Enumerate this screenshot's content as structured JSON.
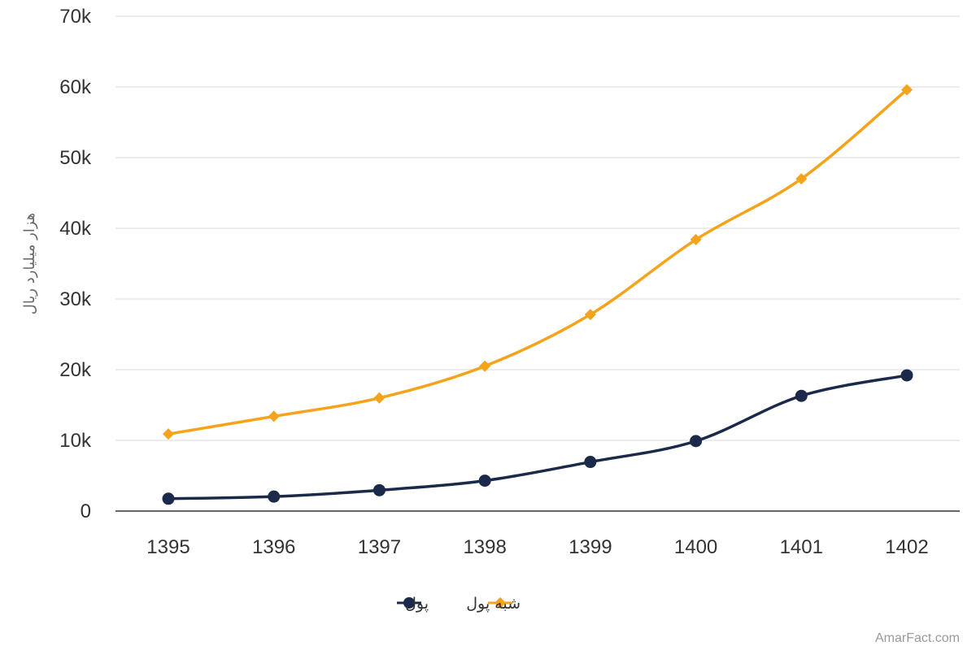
{
  "chart_data": {
    "type": "line",
    "categories": [
      "1395",
      "1396",
      "1397",
      "1398",
      "1399",
      "1400",
      "1401",
      "1402"
    ],
    "series": [
      {
        "name": "پول",
        "color": "#1b2a4a",
        "marker": "circle",
        "values": [
          1750,
          2050,
          2950,
          4300,
          6950,
          9900,
          16300,
          19200
        ]
      },
      {
        "name": "شبه پول",
        "color": "#f5a31a",
        "marker": "diamond",
        "values": [
          10900,
          13400,
          16000,
          20500,
          27800,
          38400,
          47000,
          59600
        ]
      }
    ],
    "ylim": [
      0,
      70000
    ],
    "yticks": [
      0,
      10000,
      20000,
      30000,
      40000,
      50000,
      60000,
      70000
    ],
    "ytick_labels": [
      "0",
      "10k",
      "20k",
      "30k",
      "40k",
      "50k",
      "60k",
      "70k"
    ],
    "ylabel": "هزار میلیارد ریال",
    "xlabel": "",
    "grid": true,
    "legend_position": "bottom-center"
  },
  "credit": "AmarFact.com"
}
